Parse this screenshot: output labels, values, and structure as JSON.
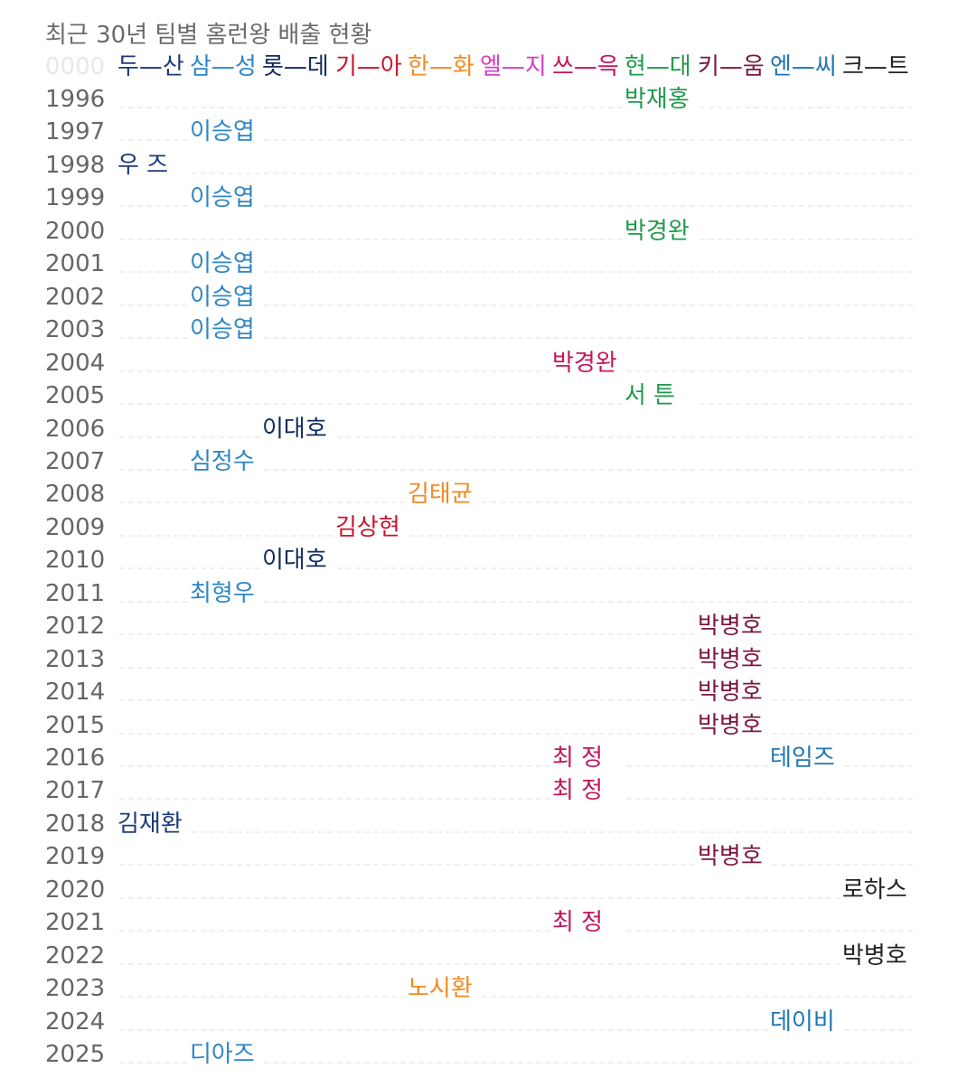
{
  "title": "최근 30년 팀별 홈런왕 배출 현황",
  "header_placeholder": "0000",
  "teams": [
    {
      "label": "두—산",
      "color": "#1c3a7a"
    },
    {
      "label": "삼—성",
      "color": "#2f86c5"
    },
    {
      "label": "롯—데",
      "color": "#0e2a5e"
    },
    {
      "label": "기—아",
      "color": "#c8152d"
    },
    {
      "label": "한—화",
      "color": "#f08a24"
    },
    {
      "label": "엘—지",
      "color": "#d63fc0"
    },
    {
      "label": "쓰—윽",
      "color": "#c4155a"
    },
    {
      "label": "현—대",
      "color": "#1f9a4a"
    },
    {
      "label": "키—움",
      "color": "#7d1640"
    },
    {
      "label": "엔—씨",
      "color": "#1f76b4"
    },
    {
      "label": "크—트",
      "color": "#222222"
    }
  ],
  "rows": [
    {
      "year": "1996",
      "team": 7,
      "name": "박재홍"
    },
    {
      "year": "1997",
      "team": 1,
      "name": "이승엽"
    },
    {
      "year": "1998",
      "team": 0,
      "name": "우  즈"
    },
    {
      "year": "1999",
      "team": 1,
      "name": "이승엽"
    },
    {
      "year": "2000",
      "team": 7,
      "name": "박경완"
    },
    {
      "year": "2001",
      "team": 1,
      "name": "이승엽"
    },
    {
      "year": "2002",
      "team": 1,
      "name": "이승엽"
    },
    {
      "year": "2003",
      "team": 1,
      "name": "이승엽"
    },
    {
      "year": "2004",
      "team": 6,
      "name": "박경완"
    },
    {
      "year": "2005",
      "team": 7,
      "name": "서  튼"
    },
    {
      "year": "2006",
      "team": 2,
      "name": "이대호"
    },
    {
      "year": "2007",
      "team": 1,
      "name": "심정수"
    },
    {
      "year": "2008",
      "team": 4,
      "name": "김태균"
    },
    {
      "year": "2009",
      "team": 3,
      "name": "김상현"
    },
    {
      "year": "2010",
      "team": 2,
      "name": "이대호"
    },
    {
      "year": "2011",
      "team": 1,
      "name": "최형우"
    },
    {
      "year": "2012",
      "team": 8,
      "name": "박병호"
    },
    {
      "year": "2013",
      "team": 8,
      "name": "박병호"
    },
    {
      "year": "2014",
      "team": 8,
      "name": "박병호"
    },
    {
      "year": "2015",
      "team": 8,
      "name": "박병호"
    },
    {
      "year": "2016",
      "team": 6,
      "name": "최  정",
      "team2": 9,
      "name2": "테임즈"
    },
    {
      "year": "2017",
      "team": 6,
      "name": "최  정"
    },
    {
      "year": "2018",
      "team": 0,
      "name": "김재환"
    },
    {
      "year": "2019",
      "team": 8,
      "name": "박병호"
    },
    {
      "year": "2020",
      "team": 10,
      "name": "로하스"
    },
    {
      "year": "2021",
      "team": 6,
      "name": "최  정"
    },
    {
      "year": "2022",
      "team": 10,
      "name": "박병호"
    },
    {
      "year": "2023",
      "team": 4,
      "name": "노시환"
    },
    {
      "year": "2024",
      "team": 9,
      "name": "데이비"
    },
    {
      "year": "2025",
      "team": 1,
      "name": "디아즈"
    }
  ]
}
